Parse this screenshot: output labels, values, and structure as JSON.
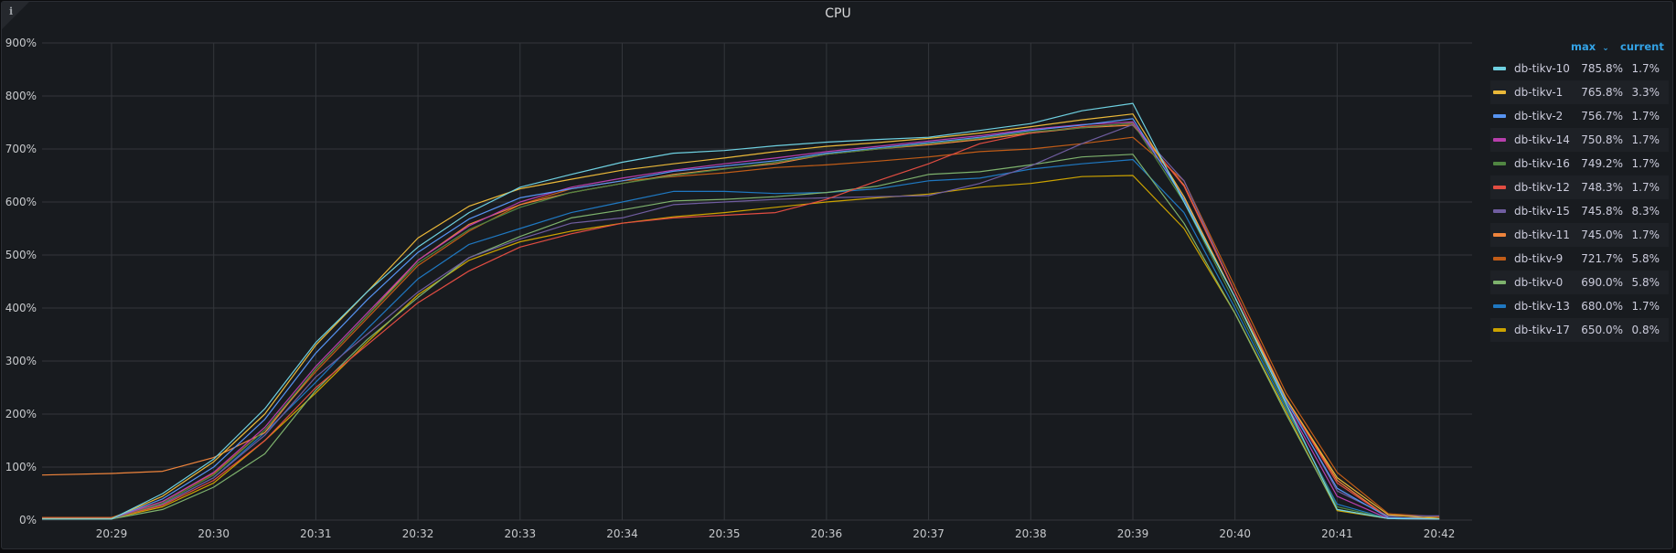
{
  "panel": {
    "title": "CPU",
    "info_icon": "info-icon"
  },
  "legend": {
    "header_max": "max",
    "header_max_sort_icon": "chevron-down-icon",
    "header_current": "current",
    "rows": [
      {
        "name": "db-tikv-10",
        "max": "785.8%",
        "current": "1.7%",
        "color": "#6ed0e0"
      },
      {
        "name": "db-tikv-1",
        "max": "765.8%",
        "current": "3.3%",
        "color": "#eab839"
      },
      {
        "name": "db-tikv-2",
        "max": "756.7%",
        "current": "1.7%",
        "color": "#5794f2"
      },
      {
        "name": "db-tikv-14",
        "max": "750.8%",
        "current": "1.7%",
        "color": "#b83fad"
      },
      {
        "name": "db-tikv-16",
        "max": "749.2%",
        "current": "1.7%",
        "color": "#508642"
      },
      {
        "name": "db-tikv-12",
        "max": "748.3%",
        "current": "1.7%",
        "color": "#e24d42"
      },
      {
        "name": "db-tikv-15",
        "max": "745.8%",
        "current": "8.3%",
        "color": "#705da0"
      },
      {
        "name": "db-tikv-11",
        "max": "745.0%",
        "current": "1.7%",
        "color": "#ef843c"
      },
      {
        "name": "db-tikv-9",
        "max": "721.7%",
        "current": "5.8%",
        "color": "#c15c17"
      },
      {
        "name": "db-tikv-0",
        "max": "690.0%",
        "current": "5.8%",
        "color": "#7eb26d"
      },
      {
        "name": "db-tikv-13",
        "max": "680.0%",
        "current": "1.7%",
        "color": "#1f78c1"
      },
      {
        "name": "db-tikv-17",
        "max": "650.0%",
        "current": "0.8%",
        "color": "#cca300"
      }
    ]
  },
  "chart_data": {
    "type": "line",
    "title": "CPU",
    "xlabel": "",
    "ylabel": "",
    "ylim": [
      0,
      900
    ],
    "yticks": [
      "0%",
      "100%",
      "200%",
      "300%",
      "400%",
      "500%",
      "600%",
      "700%",
      "800%",
      "900%"
    ],
    "xticks": [
      "20:29",
      "20:30",
      "20:31",
      "20:32",
      "20:33",
      "20:34",
      "20:35",
      "20:36",
      "20:37",
      "20:38",
      "20:39",
      "20:40",
      "20:41",
      "20:42"
    ],
    "grid": true,
    "legend_position": "right",
    "x": [
      "20:28:20",
      "20:29:00",
      "20:29:30",
      "20:30:00",
      "20:30:30",
      "20:31:00",
      "20:31:30",
      "20:32:00",
      "20:32:30",
      "20:33:00",
      "20:33:30",
      "20:34:00",
      "20:34:30",
      "20:35:00",
      "20:35:30",
      "20:36:00",
      "20:36:30",
      "20:37:00",
      "20:37:30",
      "20:38:00",
      "20:38:30",
      "20:39:00",
      "20:39:30",
      "20:40:00",
      "20:40:30",
      "20:41:00",
      "20:41:30",
      "20:42:00"
    ],
    "series": [
      {
        "name": "db-tikv-10",
        "color": "#6ed0e0",
        "values": [
          2,
          2,
          50,
          115,
          210,
          335,
          430,
          515,
          580,
          628,
          652,
          675,
          692,
          697,
          706,
          713,
          718,
          722,
          735,
          748,
          772,
          786,
          600,
          420,
          220,
          20,
          3,
          2
        ]
      },
      {
        "name": "db-tikv-1",
        "color": "#eab839",
        "values": [
          3,
          3,
          45,
          110,
          200,
          330,
          430,
          532,
          592,
          625,
          643,
          660,
          672,
          683,
          695,
          705,
          712,
          720,
          730,
          742,
          755,
          766,
          610,
          420,
          230,
          80,
          10,
          3
        ]
      },
      {
        "name": "db-tikv-2",
        "color": "#5794f2",
        "values": [
          3,
          3,
          40,
          100,
          190,
          315,
          415,
          505,
          568,
          608,
          625,
          640,
          658,
          668,
          678,
          692,
          702,
          712,
          722,
          735,
          745,
          757,
          605,
          420,
          225,
          60,
          5,
          2
        ]
      },
      {
        "name": "db-tikv-14",
        "color": "#b83fad",
        "values": [
          3,
          3,
          35,
          90,
          175,
          290,
          390,
          490,
          555,
          600,
          628,
          645,
          660,
          672,
          683,
          695,
          705,
          715,
          725,
          737,
          746,
          751,
          610,
          420,
          220,
          45,
          3,
          2
        ]
      },
      {
        "name": "db-tikv-16",
        "color": "#508642",
        "values": [
          3,
          3,
          32,
          85,
          170,
          285,
          385,
          485,
          548,
          590,
          618,
          635,
          650,
          662,
          675,
          690,
          700,
          710,
          720,
          732,
          740,
          749,
          600,
          410,
          215,
          25,
          3,
          2
        ]
      },
      {
        "name": "db-tikv-12",
        "color": "#e24d42",
        "values": [
          4,
          4,
          28,
          75,
          150,
          250,
          330,
          410,
          470,
          515,
          540,
          560,
          570,
          575,
          580,
          605,
          640,
          672,
          710,
          730,
          742,
          748,
          630,
          430,
          230,
          70,
          5,
          3
        ]
      },
      {
        "name": "db-tikv-15",
        "color": "#705da0",
        "values": [
          3,
          3,
          30,
          80,
          160,
          270,
          350,
          430,
          495,
          530,
          560,
          570,
          595,
          600,
          605,
          608,
          610,
          612,
          635,
          668,
          710,
          746,
          640,
          430,
          230,
          55,
          8,
          8
        ]
      },
      {
        "name": "db-tikv-11",
        "color": "#ef843c",
        "values": [
          85,
          88,
          92,
          118,
          165,
          285,
          385,
          490,
          558,
          595,
          618,
          635,
          652,
          663,
          672,
          690,
          700,
          708,
          718,
          730,
          740,
          745,
          632,
          430,
          230,
          75,
          5,
          2
        ]
      },
      {
        "name": "db-tikv-9",
        "color": "#c15c17",
        "values": [
          5,
          5,
          35,
          88,
          170,
          280,
          380,
          480,
          545,
          595,
          625,
          640,
          648,
          655,
          665,
          670,
          677,
          685,
          695,
          700,
          710,
          722,
          640,
          440,
          240,
          90,
          12,
          6
        ]
      },
      {
        "name": "db-tikv-0",
        "color": "#7eb26d",
        "values": [
          2,
          2,
          20,
          62,
          125,
          245,
          340,
          420,
          495,
          535,
          570,
          585,
          602,
          605,
          610,
          618,
          630,
          652,
          657,
          670,
          685,
          690,
          560,
          390,
          200,
          20,
          3,
          6
        ]
      },
      {
        "name": "db-tikv-13",
        "color": "#1f78c1",
        "values": [
          3,
          3,
          30,
          80,
          165,
          260,
          360,
          455,
          520,
          550,
          580,
          600,
          620,
          620,
          616,
          618,
          625,
          640,
          645,
          662,
          672,
          680,
          580,
          400,
          210,
          30,
          3,
          2
        ]
      },
      {
        "name": "db-tikv-17",
        "color": "#cca300",
        "values": [
          3,
          3,
          25,
          70,
          150,
          240,
          335,
          425,
          490,
          525,
          545,
          560,
          572,
          580,
          590,
          600,
          608,
          615,
          628,
          635,
          648,
          650,
          550,
          390,
          205,
          18,
          3,
          2
        ]
      }
    ]
  }
}
